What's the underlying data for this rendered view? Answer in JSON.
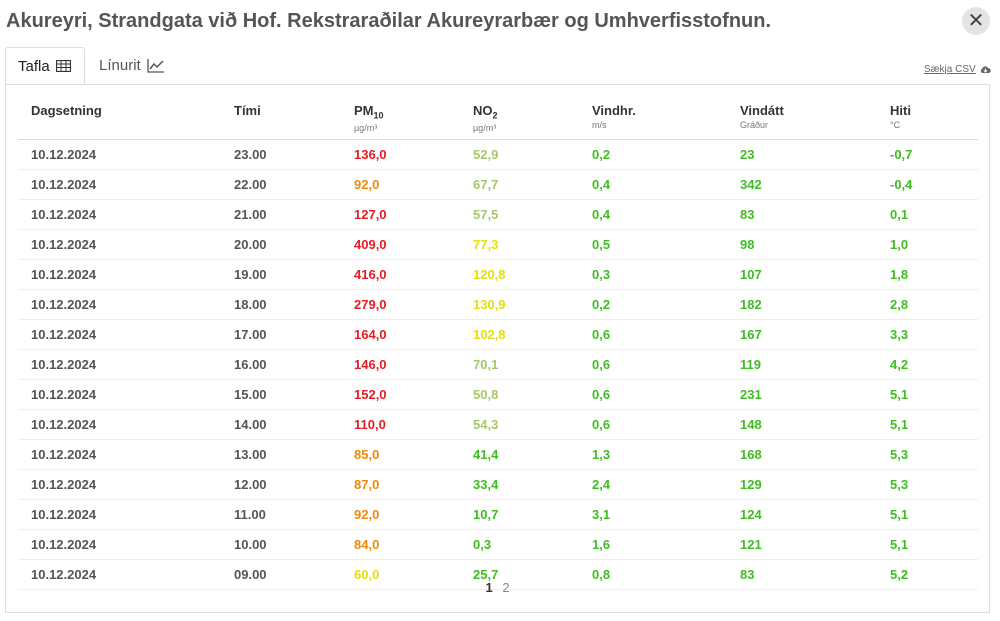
{
  "title": "Akureyri, Strandgata við Hof. Rekstraraðilar Akureyrarbær og Umhverfisstofnun.",
  "tabs": [
    {
      "label": "Tafla",
      "icon": "table-icon",
      "active": true
    },
    {
      "label": "Línurit",
      "icon": "line-chart-icon",
      "active": false
    }
  ],
  "csv_label": "Sækja CSV",
  "columns": [
    {
      "label": "Dagsetning",
      "unit": ""
    },
    {
      "label": "Tími",
      "unit": ""
    },
    {
      "label": "PM",
      "sub": "10",
      "unit": "µg/m³"
    },
    {
      "label": "NO",
      "sub": "2",
      "unit": "µg/m³"
    },
    {
      "label": "Vindhr.",
      "unit": "m/s"
    },
    {
      "label": "Vindátt",
      "unit": "Gráður"
    },
    {
      "label": "Hiti",
      "unit": "°C"
    }
  ],
  "colors": {
    "red": "#e51c23",
    "orange": "#ef8a06",
    "yellow": "#e4e00c",
    "lightgreen": "#a4c96a",
    "green": "#3fbe22"
  },
  "rows": [
    {
      "date": "10.12.2024",
      "time": "23.00",
      "pm10": "136,0",
      "pm10_level": "red",
      "no2": "52,9",
      "no2_level": "lightgreen",
      "wind_speed": "0,2",
      "wind_dir": "23",
      "temp": "-0,7"
    },
    {
      "date": "10.12.2024",
      "time": "22.00",
      "pm10": "92,0",
      "pm10_level": "orange",
      "no2": "67,7",
      "no2_level": "lightgreen",
      "wind_speed": "0,4",
      "wind_dir": "342",
      "temp": "-0,4"
    },
    {
      "date": "10.12.2024",
      "time": "21.00",
      "pm10": "127,0",
      "pm10_level": "red",
      "no2": "57,5",
      "no2_level": "lightgreen",
      "wind_speed": "0,4",
      "wind_dir": "83",
      "temp": "0,1"
    },
    {
      "date": "10.12.2024",
      "time": "20.00",
      "pm10": "409,0",
      "pm10_level": "red",
      "no2": "77,3",
      "no2_level": "yellow",
      "wind_speed": "0,5",
      "wind_dir": "98",
      "temp": "1,0"
    },
    {
      "date": "10.12.2024",
      "time": "19.00",
      "pm10": "416,0",
      "pm10_level": "red",
      "no2": "120,8",
      "no2_level": "yellow",
      "wind_speed": "0,3",
      "wind_dir": "107",
      "temp": "1,8"
    },
    {
      "date": "10.12.2024",
      "time": "18.00",
      "pm10": "279,0",
      "pm10_level": "red",
      "no2": "130,9",
      "no2_level": "yellow",
      "wind_speed": "0,2",
      "wind_dir": "182",
      "temp": "2,8"
    },
    {
      "date": "10.12.2024",
      "time": "17.00",
      "pm10": "164,0",
      "pm10_level": "red",
      "no2": "102,8",
      "no2_level": "yellow",
      "wind_speed": "0,6",
      "wind_dir": "167",
      "temp": "3,3"
    },
    {
      "date": "10.12.2024",
      "time": "16.00",
      "pm10": "146,0",
      "pm10_level": "red",
      "no2": "70,1",
      "no2_level": "lightgreen",
      "wind_speed": "0,6",
      "wind_dir": "119",
      "temp": "4,2"
    },
    {
      "date": "10.12.2024",
      "time": "15.00",
      "pm10": "152,0",
      "pm10_level": "red",
      "no2": "50,8",
      "no2_level": "lightgreen",
      "wind_speed": "0,6",
      "wind_dir": "231",
      "temp": "5,1"
    },
    {
      "date": "10.12.2024",
      "time": "14.00",
      "pm10": "110,0",
      "pm10_level": "red",
      "no2": "54,3",
      "no2_level": "lightgreen",
      "wind_speed": "0,6",
      "wind_dir": "148",
      "temp": "5,1"
    },
    {
      "date": "10.12.2024",
      "time": "13.00",
      "pm10": "85,0",
      "pm10_level": "orange",
      "no2": "41,4",
      "no2_level": "green",
      "wind_speed": "1,3",
      "wind_dir": "168",
      "temp": "5,3"
    },
    {
      "date": "10.12.2024",
      "time": "12.00",
      "pm10": "87,0",
      "pm10_level": "orange",
      "no2": "33,4",
      "no2_level": "green",
      "wind_speed": "2,4",
      "wind_dir": "129",
      "temp": "5,3"
    },
    {
      "date": "10.12.2024",
      "time": "11.00",
      "pm10": "92,0",
      "pm10_level": "orange",
      "no2": "10,7",
      "no2_level": "green",
      "wind_speed": "3,1",
      "wind_dir": "124",
      "temp": "5,1"
    },
    {
      "date": "10.12.2024",
      "time": "10.00",
      "pm10": "84,0",
      "pm10_level": "orange",
      "no2": "0,3",
      "no2_level": "green",
      "wind_speed": "1,6",
      "wind_dir": "121",
      "temp": "5,1"
    },
    {
      "date": "10.12.2024",
      "time": "09.00",
      "pm10": "60,0",
      "pm10_level": "yellow",
      "no2": "25,7",
      "no2_level": "green",
      "wind_speed": "0,8",
      "wind_dir": "83",
      "temp": "5,2"
    }
  ],
  "pagination": {
    "pages": [
      "1",
      "2"
    ],
    "current": "1"
  }
}
